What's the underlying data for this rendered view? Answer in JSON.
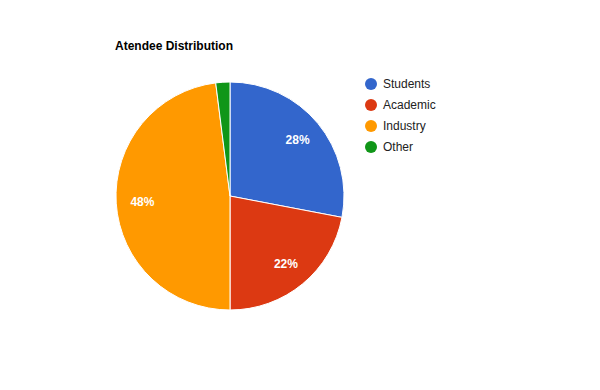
{
  "chart_data": {
    "type": "pie",
    "title": "Atendee Distribution",
    "categories": [
      "Students",
      "Academic",
      "Industry",
      "Other"
    ],
    "values": [
      28,
      22,
      48,
      2
    ],
    "value_labels": [
      "28%",
      "22%",
      "48%",
      null
    ],
    "colors": [
      "#3366cc",
      "#dc3912",
      "#ff9900",
      "#109618"
    ],
    "data_labels": true,
    "legend": "right"
  }
}
